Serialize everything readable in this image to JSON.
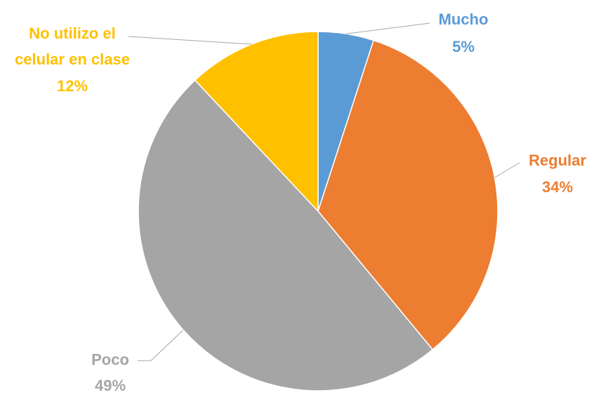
{
  "chart_data": {
    "type": "pie",
    "title": "",
    "start_angle_deg": 0,
    "direction": "clockwise",
    "slices": [
      {
        "label": "Mucho",
        "value": 5,
        "percent_label": "5%",
        "color": "#5b9bd5"
      },
      {
        "label": "Regular",
        "value": 34,
        "percent_label": "34%",
        "color": "#ed7d31"
      },
      {
        "label": "Poco",
        "value": 49,
        "percent_label": "49%",
        "color": "#a5a5a5"
      },
      {
        "label_lines": [
          "No utilizo el",
          "celular en clase"
        ],
        "value": 12,
        "percent_label": "12%",
        "color": "#ffc000"
      }
    ],
    "leader_line_color": "#a6a6a6",
    "legend": "none"
  }
}
